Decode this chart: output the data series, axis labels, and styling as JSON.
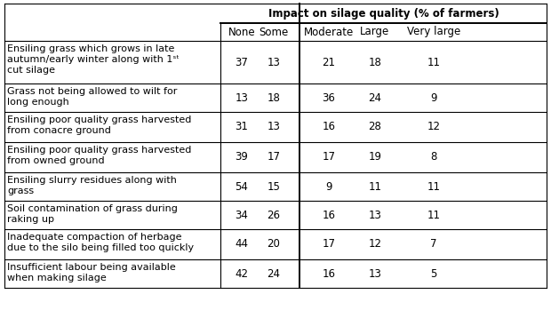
{
  "title": "Impact on silage quality (% of farmers)",
  "col_headers": [
    "None",
    "Some",
    "Moderate",
    "Large",
    "Very large"
  ],
  "rows": [
    {
      "label": "Ensiling grass which grows in late\nautumn/early winter along with 1ˢᵗ\ncut silage",
      "values": [
        37,
        13,
        21,
        18,
        11
      ]
    },
    {
      "label": "Grass not being allowed to wilt for\nlong enough",
      "values": [
        13,
        18,
        36,
        24,
        9
      ]
    },
    {
      "label": "Ensiling poor quality grass harvested\nfrom conacre ground",
      "values": [
        31,
        13,
        16,
        28,
        12
      ]
    },
    {
      "label": "Ensiling poor quality grass harvested\nfrom owned ground",
      "values": [
        39,
        17,
        17,
        19,
        8
      ]
    },
    {
      "label": "Ensiling slurry residues along with\ngrass",
      "values": [
        54,
        15,
        9,
        11,
        11
      ]
    },
    {
      "label": "Soil contamination of grass during\nraking up",
      "values": [
        34,
        26,
        16,
        13,
        11
      ]
    },
    {
      "label": "Inadequate compaction of herbage\ndue to the silo being filled too quickly",
      "values": [
        44,
        20,
        17,
        12,
        7
      ]
    },
    {
      "label": "Insufficient labour being available\nwhen making silage",
      "values": [
        42,
        24,
        16,
        13,
        5
      ]
    }
  ],
  "bg_color": "#ffffff",
  "text_color": "#000000",
  "line_color": "#000000",
  "title_fontsize": 8.5,
  "header_fontsize": 8.5,
  "cell_fontsize": 8.5,
  "label_fontsize": 8.0,
  "superscript_label": "st"
}
